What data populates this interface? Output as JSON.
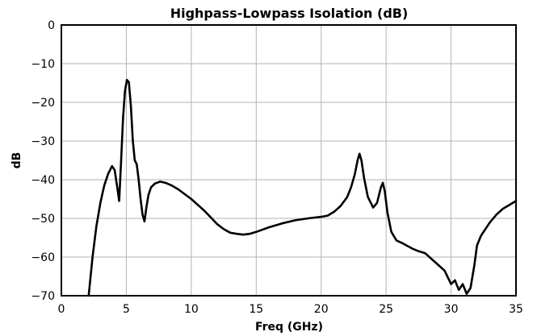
{
  "chart_data": {
    "type": "line",
    "title": "Highpass-Lowpass Isolation (dB)",
    "xlabel": "Freq (GHz)",
    "ylabel": "dB",
    "xlim": [
      0,
      35
    ],
    "ylim": [
      -70,
      0
    ],
    "xticks": [
      0,
      5,
      10,
      15,
      20,
      25,
      30,
      35
    ],
    "yticks": [
      0,
      -10,
      -20,
      -30,
      -40,
      -50,
      -60,
      -70
    ],
    "grid": true,
    "legend": "none",
    "colors": {
      "line": "#000000",
      "grid": "#b3b3b3",
      "frame": "#000000"
    },
    "series": [
      {
        "x": [
          2.1,
          2.4,
          2.7,
          3.0,
          3.3,
          3.6,
          3.9,
          4.1,
          4.3,
          4.45,
          4.6,
          4.75,
          4.9,
          5.05,
          5.2,
          5.35,
          5.5,
          5.65,
          5.8,
          5.95,
          6.1,
          6.25,
          6.4,
          6.55,
          6.7,
          6.9,
          7.2,
          7.6,
          8.0,
          8.5,
          9.0,
          10.0,
          11.0,
          12.0,
          12.5,
          13.0,
          13.5,
          14.0,
          14.5,
          15.0,
          16.0,
          17.0,
          18.0,
          19.0,
          20.0,
          20.5,
          21.0,
          21.5,
          22.0,
          22.3,
          22.6,
          22.8,
          22.95,
          23.1,
          23.3,
          23.6,
          24.0,
          24.3,
          24.6,
          24.75,
          24.9,
          25.1,
          25.4,
          25.8,
          26.3,
          27.0,
          27.5,
          28.0,
          28.5,
          29.0,
          29.5,
          30.0,
          30.3,
          30.6,
          30.9,
          31.2,
          31.5,
          31.8,
          32.0,
          32.3,
          32.6,
          33.0,
          33.5,
          34.0,
          34.5,
          35.0
        ],
        "y": [
          -70.0,
          -60.0,
          -52.0,
          -46.0,
          -41.5,
          -38.5,
          -36.5,
          -37.5,
          -42.0,
          -45.5,
          -35.0,
          -24.0,
          -17.0,
          -14.2,
          -14.8,
          -21.0,
          -30.0,
          -35.0,
          -36.0,
          -40.0,
          -45.0,
          -49.0,
          -50.8,
          -47.0,
          -44.0,
          -42.0,
          -41.0,
          -40.5,
          -40.8,
          -41.5,
          -42.5,
          -45.0,
          -48.0,
          -51.5,
          -52.8,
          -53.7,
          -54.0,
          -54.2,
          -54.0,
          -53.5,
          -52.3,
          -51.3,
          -50.5,
          -50.0,
          -49.6,
          -49.3,
          -48.3,
          -46.8,
          -44.5,
          -42.0,
          -38.5,
          -35.0,
          -33.3,
          -35.0,
          -39.5,
          -44.5,
          -47.2,
          -46.0,
          -42.0,
          -40.8,
          -43.0,
          -48.5,
          -53.5,
          -55.7,
          -56.5,
          -57.8,
          -58.5,
          -59.0,
          -60.5,
          -62.0,
          -63.5,
          -67.0,
          -66.0,
          -68.5,
          -67.0,
          -69.5,
          -68.0,
          -62.0,
          -57.0,
          -54.5,
          -53.0,
          -51.0,
          -49.0,
          -47.5,
          -46.5,
          -45.5
        ]
      }
    ]
  }
}
